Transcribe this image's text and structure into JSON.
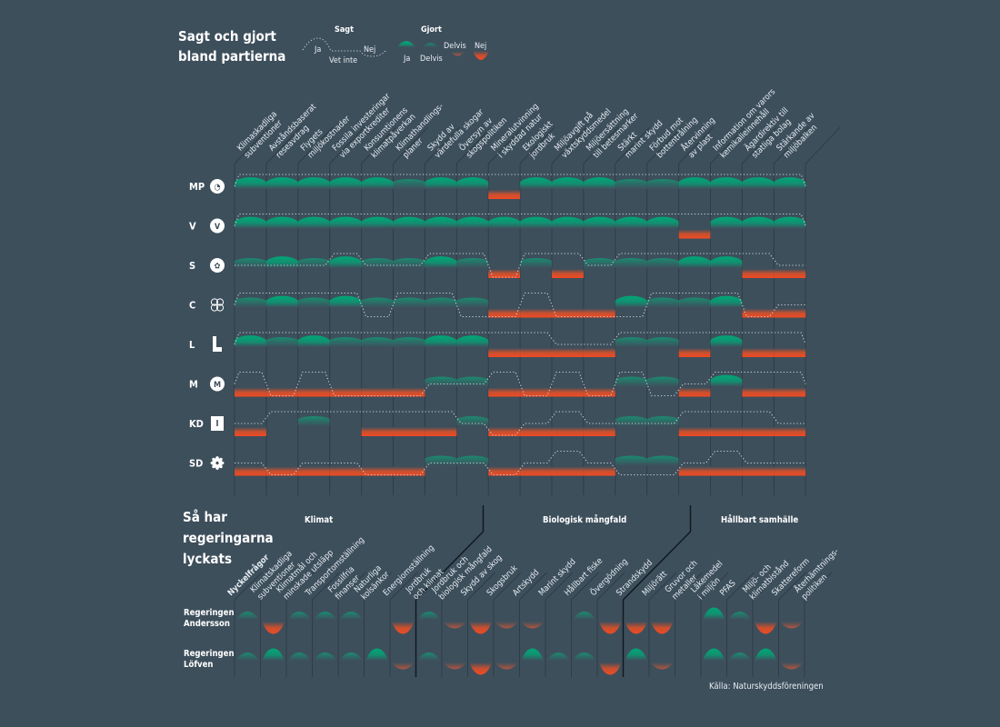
{
  "chart_data": [
    {
      "type": "heatmap",
      "title": "Sagt och gjort bland partierna",
      "legend": {
        "said_heading": "Sagt",
        "said_levels": [
          "Ja",
          "Vet inte",
          "Nej"
        ],
        "done_heading": "Gjort",
        "done_levels": [
          "Ja",
          "Delvis",
          "Delvis",
          "Nej"
        ],
        "colors": {
          "done_ja": "#00a776",
          "done_delvis_pos": "#1f8c72",
          "done_delvis_neg": "#b0563f",
          "done_nej": "#ef4a23",
          "said_line": "#c8d3da"
        },
        "placement": "top"
      },
      "categories": [
        "Klimaskadliga subventioner",
        "Avståndsbaserat reseavdrag",
        "Flygets miljökostnader",
        "Fossila investeringar via exportkrediter",
        "Konsumtionens klimatpåverkan",
        "Klimathandlings- planer",
        "Skydd av värdefulla skogar",
        "Översyn av skogspolitiken",
        "Mineralutvinning i skyddad natur",
        "Ekologiskt jordbruk",
        "Miljöavgift på växtskyddsmedel",
        "Miljöersättning till betesmarker",
        "Stärkt marint skydd",
        "Förbud mot bottentrålning",
        "Återvinning av plast",
        "Information om varors kemikalieinnehåll",
        "Ägardirektiv till statliga bolag",
        "Stärkande av miljöbalken"
      ],
      "value_scale": "said: 1 = Ja, 0 = Vet inte, -1 = Nej; done: 2 = Ja, 1 = Delvis (positive), -1 = Delvis (negative), -2 = Nej, 0 = none",
      "series": [
        {
          "name": "MP",
          "said": [
            1,
            1,
            1,
            1,
            1,
            1,
            1,
            1,
            1,
            1,
            1,
            1,
            1,
            1,
            1,
            1,
            1,
            1
          ],
          "done": [
            2,
            2,
            2,
            2,
            2,
            1,
            2,
            2,
            -2,
            2,
            2,
            2,
            1,
            1,
            2,
            2,
            2,
            2
          ]
        },
        {
          "name": "V",
          "said": [
            1,
            1,
            1,
            1,
            1,
            1,
            1,
            1,
            1,
            1,
            1,
            1,
            1,
            1,
            1,
            1,
            1,
            1
          ],
          "done": [
            2,
            2,
            2,
            2,
            2,
            2,
            2,
            2,
            2,
            2,
            2,
            2,
            2,
            2,
            -2,
            2,
            2,
            2
          ]
        },
        {
          "name": "S",
          "said": [
            0,
            0,
            0,
            1,
            0,
            0,
            1,
            1,
            -1,
            1,
            1,
            0,
            1,
            1,
            1,
            1,
            1,
            0
          ],
          "done": [
            1,
            2,
            1,
            2,
            1,
            1,
            2,
            1,
            -2,
            1,
            -2,
            1,
            1,
            1,
            2,
            2,
            -2,
            -2
          ]
        },
        {
          "name": "C",
          "said": [
            1,
            1,
            1,
            1,
            -1,
            1,
            1,
            -1,
            -1,
            1,
            -1,
            -1,
            -1,
            1,
            1,
            1,
            -1,
            0
          ],
          "done": [
            1,
            2,
            1,
            2,
            1,
            1,
            1,
            1,
            -2,
            -2,
            -2,
            -2,
            2,
            1,
            1,
            2,
            -2,
            -2
          ]
        },
        {
          "name": "L",
          "said": [
            1,
            1,
            1,
            1,
            1,
            1,
            1,
            1,
            1,
            1,
            0,
            0,
            1,
            1,
            1,
            1,
            1,
            1
          ],
          "done": [
            2,
            1,
            2,
            1,
            1,
            1,
            2,
            2,
            -2,
            -2,
            -2,
            -2,
            1,
            1,
            -2,
            2,
            -2,
            -2
          ]
        },
        {
          "name": "M",
          "said": [
            1,
            -1,
            1,
            -1,
            -1,
            -1,
            0,
            0,
            1,
            -1,
            1,
            -1,
            1,
            -1,
            0,
            1,
            1,
            1
          ],
          "done": [
            -2,
            -2,
            -2,
            -2,
            -2,
            -2,
            1,
            1,
            -2,
            -2,
            -2,
            -2,
            1,
            1,
            -2,
            2,
            -2,
            -2
          ]
        },
        {
          "name": "KD",
          "said": [
            0,
            1,
            1,
            1,
            1,
            1,
            1,
            0,
            -1,
            0,
            1,
            0,
            0,
            0,
            1,
            1,
            1,
            0
          ],
          "done": [
            -2,
            0,
            1,
            0,
            -2,
            -2,
            -2,
            1,
            -2,
            -2,
            -2,
            -2,
            1,
            1,
            -2,
            -2,
            -2,
            -2
          ]
        },
        {
          "name": "SD",
          "said": [
            0,
            -1,
            0,
            0,
            -1,
            -1,
            0,
            0,
            -1,
            0,
            1,
            0,
            -1,
            -1,
            0,
            1,
            0,
            0
          ],
          "done": [
            -2,
            -2,
            -2,
            -2,
            -2,
            -2,
            1,
            1,
            -2,
            -2,
            -2,
            -2,
            1,
            1,
            -2,
            -2,
            -2,
            -2
          ]
        }
      ]
    },
    {
      "type": "heatmap",
      "title": "Så har regeringarna lyckats",
      "groups": [
        {
          "label": "Klimat",
          "count": 7
        },
        {
          "label": "Biologisk mångfald",
          "count": 8
        },
        {
          "label": "Hållbart samhälle",
          "count": 7
        }
      ],
      "categories": [
        "Nyckelfrågor",
        "Klimatskadliga subventioner",
        "Klimatmål och minskade utsläpp",
        "Transportomställning",
        "Fossilfria finanser",
        "Naturliga kolsänkor",
        "Energiomställning",
        "Jordbruk och klimat",
        "Jordbruk och biologisk mångfald",
        "Skydd av skog",
        "Skogsbruk",
        "Artskydd",
        "Marint skydd",
        "Hållbart fiske",
        "Övergödning",
        "Strandskydd",
        "Miljörätt",
        "Gruvor och metaller",
        "Läkemedel i miljön",
        "PFAS",
        "Miljö- och klimatbistånd",
        "Skattereform",
        "Återhämtnings- politiken"
      ],
      "value_scale": "2 = Ja, 1 = Delvis (positive), -1 = Delvis (negative), -2 = Nej, 0 = none",
      "series": [
        {
          "name": "Regeringen Andersson",
          "values": [
            1,
            1,
            -2,
            1,
            1,
            1,
            0,
            -2,
            1,
            -1,
            -2,
            -1,
            -1,
            0,
            1,
            -2,
            -2,
            -2,
            0,
            2,
            1,
            -2,
            -1
          ]
        },
        {
          "name": "Regeringen Löfven",
          "values": [
            1,
            1,
            2,
            1,
            1,
            1,
            2,
            -1,
            1,
            -1,
            -2,
            -1,
            2,
            1,
            1,
            -2,
            2,
            -1,
            0,
            2,
            1,
            2,
            -1
          ]
        }
      ]
    }
  ],
  "header": {
    "title_line1": "Sagt och gjort",
    "title_line2": "bland partierna"
  },
  "section2": {
    "title_line1": "Så har",
    "title_line2": "regeringarna",
    "title_line3": "lyckats"
  },
  "parties": [
    {
      "abbr": "MP",
      "icon": "mp-dandelion-logo-icon"
    },
    {
      "abbr": "V",
      "icon": "v-logo-icon"
    },
    {
      "abbr": "S",
      "icon": "s-rose-logo-icon"
    },
    {
      "abbr": "C",
      "icon": "c-clover-logo-icon"
    },
    {
      "abbr": "L",
      "icon": "l-logo-icon"
    },
    {
      "abbr": "M",
      "icon": "m-logo-icon"
    },
    {
      "abbr": "KD",
      "icon": "kd-logo-icon"
    },
    {
      "abbr": "SD",
      "icon": "sd-flower-logo-icon"
    }
  ],
  "governments": [
    {
      "line1": "Regeringen",
      "line2": "Andersson"
    },
    {
      "line1": "Regeringen",
      "line2": "Löfven"
    }
  ],
  "source": "Källa: Naturskyddsföreningen"
}
